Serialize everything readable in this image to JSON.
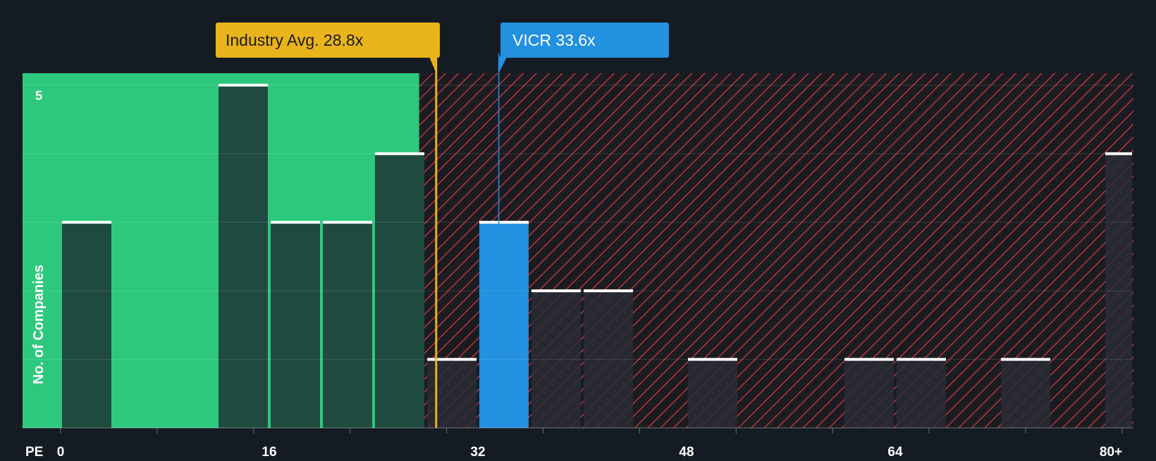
{
  "colors": {
    "background": "#151b23",
    "fair_zone": "#2ec87d",
    "bar_fair": "#1f4a3f",
    "bar_over": "#2a2c35",
    "hatch_line": "#d0383f",
    "highlight": "#2390e0",
    "industry": "#e9b31b",
    "bar_cap": "#ffffff",
    "axis_text": "#ffffff"
  },
  "chart_data": {
    "type": "bar",
    "title": "",
    "xlabel": "PE",
    "ylabel": "No. of Companies",
    "x_ticks": [
      "0",
      "16",
      "32",
      "48",
      "64",
      "80+"
    ],
    "y_ticks": [
      "5"
    ],
    "ylim": [
      0,
      5.2
    ],
    "xlim": [
      0,
      82
    ],
    "bin_width": 4,
    "bars": [
      {
        "x_start": 0,
        "value": 3
      },
      {
        "x_start": 12,
        "value": 5
      },
      {
        "x_start": 16,
        "value": 3
      },
      {
        "x_start": 20,
        "value": 3
      },
      {
        "x_start": 24,
        "value": 4
      },
      {
        "x_start": 28,
        "value": 1
      },
      {
        "x_start": 32,
        "value": 3,
        "highlight": true
      },
      {
        "x_start": 36,
        "value": 2
      },
      {
        "x_start": 40,
        "value": 2
      },
      {
        "x_start": 48,
        "value": 1
      },
      {
        "x_start": 60,
        "value": 1
      },
      {
        "x_start": 64,
        "value": 1
      },
      {
        "x_start": 72,
        "value": 1
      },
      {
        "x_start": 80,
        "value": 4
      }
    ],
    "fair_value_threshold": 27.5,
    "industry_avg": {
      "value": 28.8,
      "label": "Industry Avg. 28.8x"
    },
    "company": {
      "value": 33.6,
      "label": "VICR 33.6x"
    },
    "grid": true
  }
}
